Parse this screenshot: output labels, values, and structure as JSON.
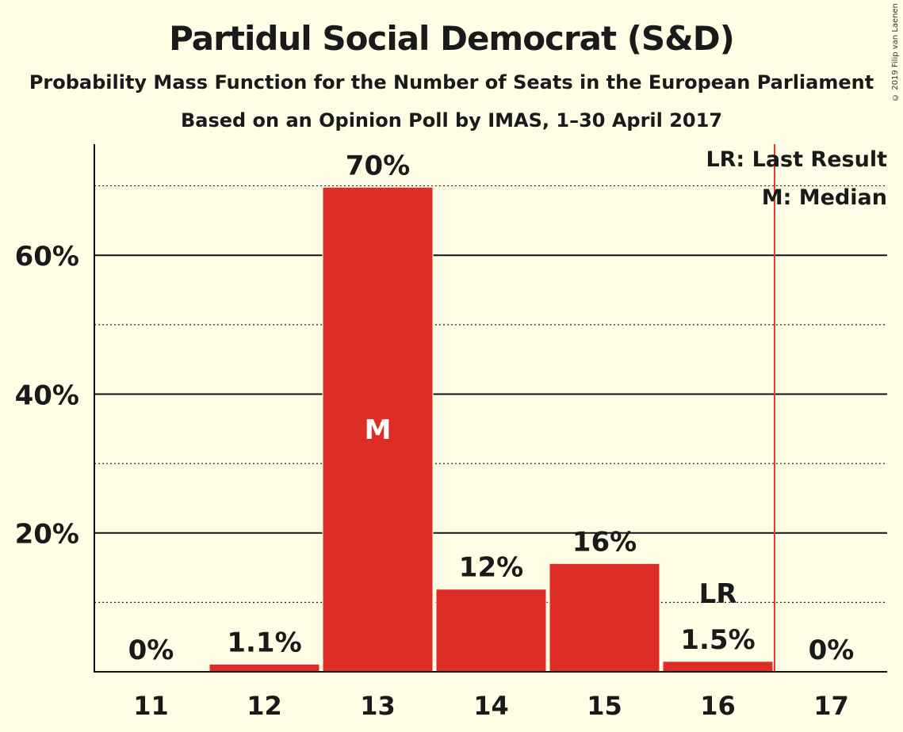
{
  "chart_data": {
    "type": "bar",
    "title": "Partidul Social Democrat (S&D)",
    "subtitle": "Probability Mass Function for the Number of Seats in the European Parliament",
    "subtitle2": "Based on an Opinion Poll by IMAS, 1–30 April 2017",
    "categories": [
      "11",
      "12",
      "13",
      "14",
      "15",
      "16",
      "17"
    ],
    "values": [
      0,
      1.1,
      69.8,
      11.9,
      15.6,
      1.5,
      0
    ],
    "value_labels": [
      "0%",
      "1.1%",
      "70%",
      "12%",
      "16%",
      "1.5%",
      "0%"
    ],
    "ylim": [
      0,
      76
    ],
    "yticks": [
      20,
      40,
      60
    ],
    "ytick_labels": [
      "20%",
      "40%",
      "60%"
    ],
    "minor_gridlines": [
      10,
      30,
      50,
      70
    ],
    "median_category": "13",
    "median_marker": "M",
    "last_result_category": "16",
    "last_result_marker": "LR",
    "last_result_line_after": "16",
    "legend": {
      "position": "top-right",
      "lr_text": "LR: Last Result",
      "m_text": "M: Median"
    },
    "bar_color": "#de2d26",
    "line_color": "#e8392e"
  },
  "copyright": "© 2019 Filip van Laenen"
}
